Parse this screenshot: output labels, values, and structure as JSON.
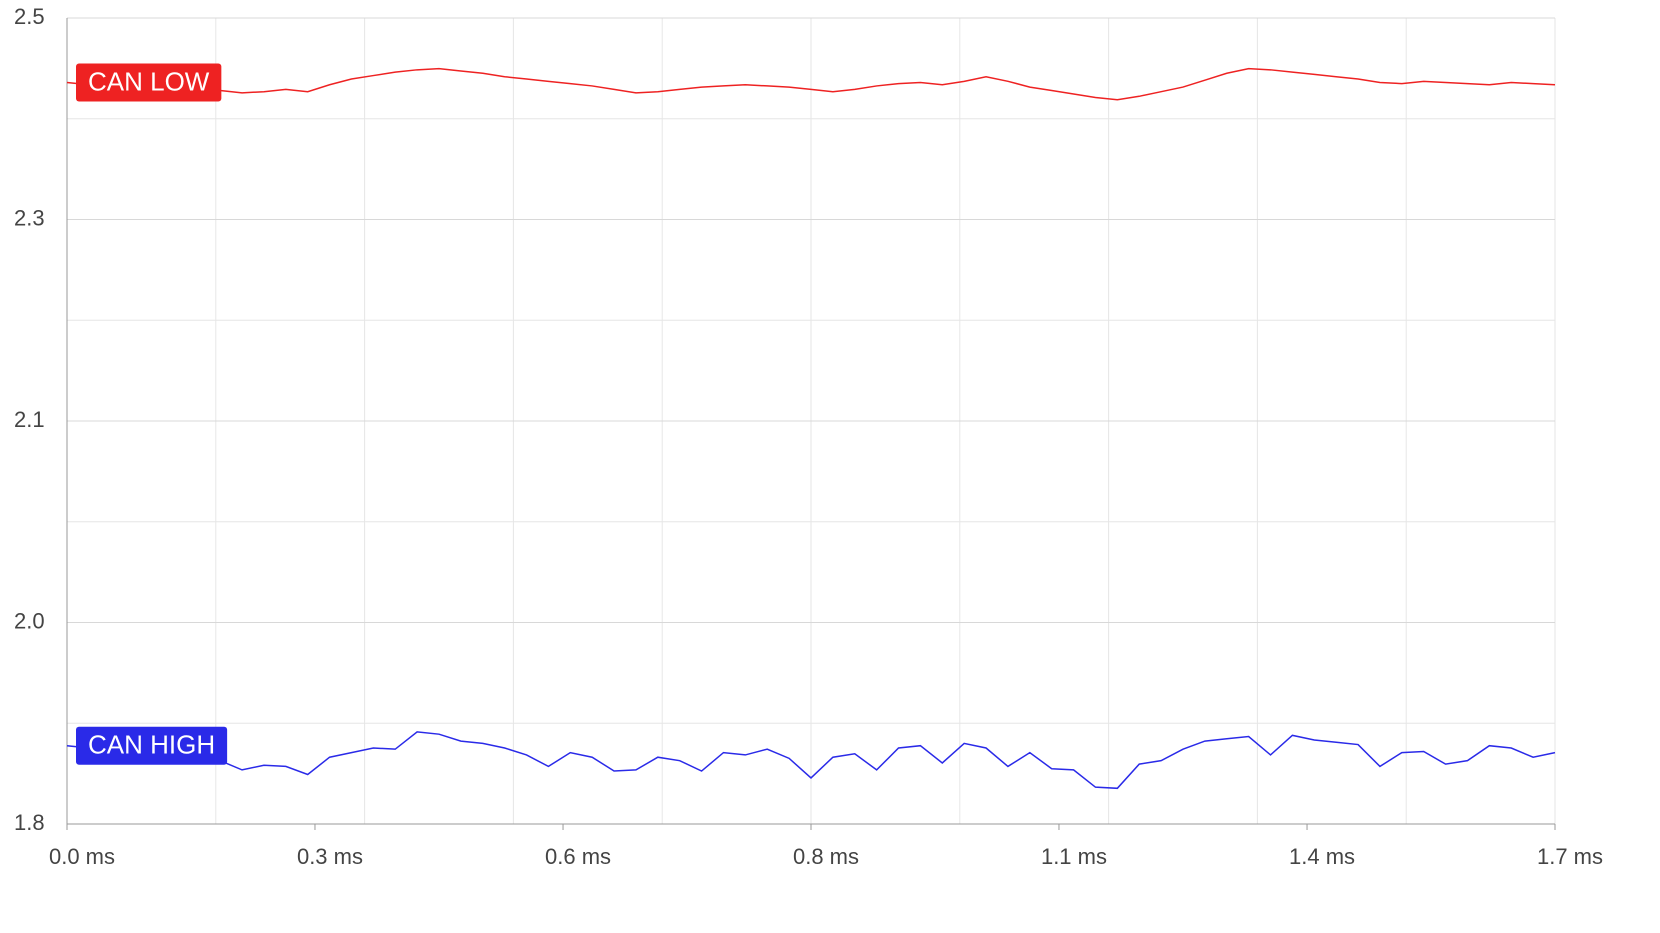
{
  "chart_data": {
    "type": "line",
    "x": [
      0,
      0.025,
      0.05,
      0.075,
      0.1,
      0.125,
      0.15,
      0.175,
      0.2,
      0.225,
      0.25,
      0.275,
      0.3,
      0.325,
      0.35,
      0.375,
      0.4,
      0.425,
      0.45,
      0.475,
      0.5,
      0.525,
      0.55,
      0.575,
      0.6,
      0.625,
      0.65,
      0.675,
      0.7,
      0.725,
      0.75,
      0.775,
      0.8,
      0.825,
      0.85,
      0.875,
      0.9,
      0.925,
      0.95,
      0.975,
      1.0,
      1.025,
      1.05,
      1.075,
      1.1,
      1.125,
      1.15,
      1.175,
      1.2,
      1.225,
      1.25,
      1.275,
      1.3,
      1.325,
      1.35,
      1.375,
      1.4,
      1.425,
      1.45,
      1.475,
      1.5,
      1.525,
      1.55,
      1.575,
      1.6,
      1.625,
      1.65,
      1.675,
      1.7
    ],
    "series": [
      {
        "name": "CAN LOW",
        "color": "#ee2222",
        "values": [
          2.444,
          2.442,
          2.441,
          2.443,
          2.444,
          2.446,
          2.44,
          2.437,
          2.435,
          2.436,
          2.438,
          2.436,
          2.442,
          2.447,
          2.45,
          2.453,
          2.455,
          2.456,
          2.454,
          2.452,
          2.449,
          2.447,
          2.445,
          2.443,
          2.441,
          2.438,
          2.435,
          2.436,
          2.438,
          2.44,
          2.441,
          2.442,
          2.441,
          2.44,
          2.438,
          2.436,
          2.438,
          2.441,
          2.443,
          2.444,
          2.442,
          2.445,
          2.449,
          2.445,
          2.44,
          2.437,
          2.434,
          2.431,
          2.429,
          2.432,
          2.436,
          2.44,
          2.446,
          2.452,
          2.456,
          2.455,
          2.453,
          2.451,
          2.449,
          2.447,
          2.444,
          2.443,
          2.445,
          2.444,
          2.443,
          2.442,
          2.444,
          2.443,
          2.442
        ]
      },
      {
        "name": "CAN HIGH",
        "color": "#2a2ae8",
        "values": [
          1.868,
          1.866,
          1.867,
          1.864,
          1.86,
          1.863,
          1.862,
          1.855,
          1.847,
          1.851,
          1.85,
          1.843,
          1.858,
          1.862,
          1.866,
          1.865,
          1.88,
          1.878,
          1.872,
          1.87,
          1.866,
          1.86,
          1.85,
          1.862,
          1.858,
          1.846,
          1.847,
          1.858,
          1.855,
          1.846,
          1.862,
          1.86,
          1.865,
          1.857,
          1.84,
          1.858,
          1.861,
          1.847,
          1.866,
          1.868,
          1.853,
          1.87,
          1.866,
          1.85,
          1.862,
          1.848,
          1.847,
          1.832,
          1.831,
          1.852,
          1.855,
          1.865,
          1.872,
          1.874,
          1.876,
          1.86,
          1.877,
          1.873,
          1.871,
          1.869,
          1.85,
          1.862,
          1.863,
          1.852,
          1.855,
          1.868,
          1.866,
          1.858,
          1.862
        ]
      }
    ],
    "xlim": [
      0,
      1.7
    ],
    "xticks": [
      {
        "value": 0,
        "label": "0.0 ms"
      },
      {
        "value": 0.2833,
        "label": "0.3 ms"
      },
      {
        "value": 0.5667,
        "label": "0.6 ms"
      },
      {
        "value": 0.85,
        "label": "0.8 ms"
      },
      {
        "value": 1.1333,
        "label": "1.1 ms"
      },
      {
        "value": 1.4167,
        "label": "1.4 ms"
      },
      {
        "value": 1.7,
        "label": "1.7 ms"
      }
    ],
    "xgrid": [
      0,
      0.17,
      0.34,
      0.51,
      0.68,
      0.85,
      1.02,
      1.19,
      1.36,
      1.53,
      1.7
    ],
    "ylim": [
      1.8,
      2.5
    ],
    "yticks": [
      {
        "value": 2.5,
        "label": "2.5"
      },
      {
        "value": 2.325,
        "label": "2.3"
      },
      {
        "value": 2.15,
        "label": "2.1"
      },
      {
        "value": 1.975,
        "label": "2.0"
      },
      {
        "value": 1.8,
        "label": "1.8"
      }
    ],
    "ygrid_minor": [
      2.4125,
      2.2375,
      2.0625,
      1.8875
    ],
    "grid": true
  }
}
